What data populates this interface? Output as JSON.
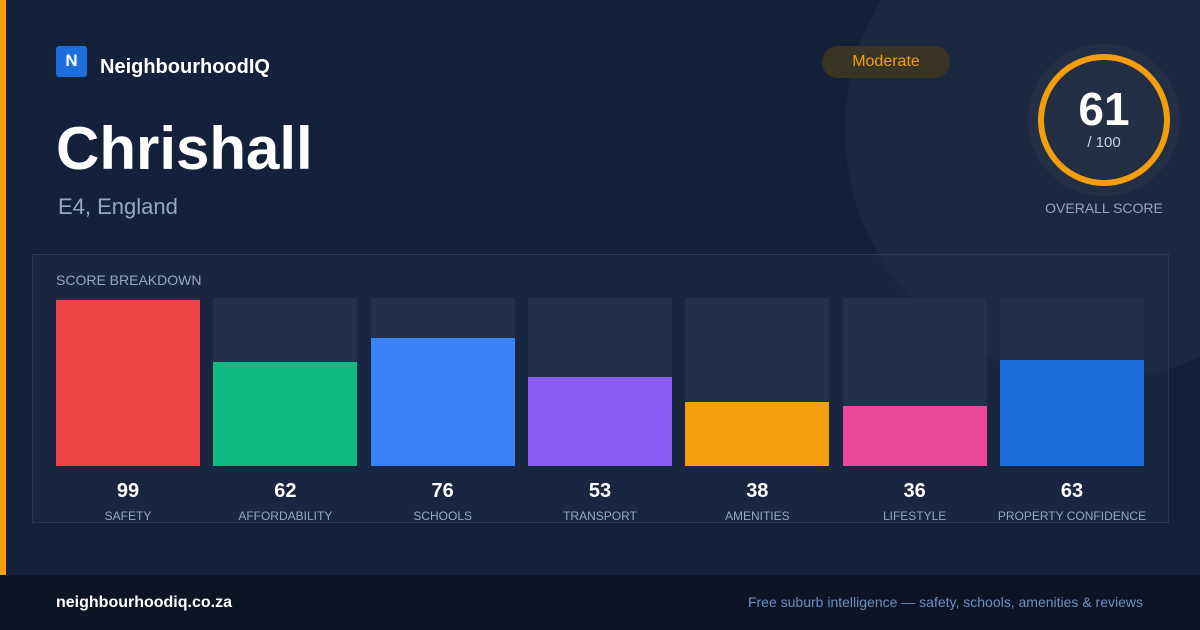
{
  "header": {
    "brand_initial": "N",
    "brand": "NeighbourhoodIQ",
    "title": "Chrishall",
    "location": "E4, England",
    "badge": "Moderate"
  },
  "score": {
    "value": 61,
    "denominator": "/ 100",
    "label": "OVERALL SCORE"
  },
  "chart_data": {
    "type": "bar",
    "title": "SCORE BREAKDOWN",
    "categories": [
      "SAFETY",
      "AFFORDABILITY",
      "SCHOOLS",
      "TRANSPORT",
      "AMENITIES",
      "LIFESTYLE",
      "PROPERTY CONFIDENCE"
    ],
    "values": [
      99,
      62,
      76,
      53,
      38,
      36,
      63
    ],
    "colors": [
      "#ef4444",
      "#10b981",
      "#3b82f6",
      "#8b5cf6",
      "#f59e0b",
      "#ec4899",
      "#1d6fdc"
    ],
    "ylim": [
      0,
      100
    ]
  },
  "footer": {
    "site": "neighbourhoodiq.co.za",
    "tagline": "Free suburb intelligence — safety, schools, amenities & reviews"
  }
}
